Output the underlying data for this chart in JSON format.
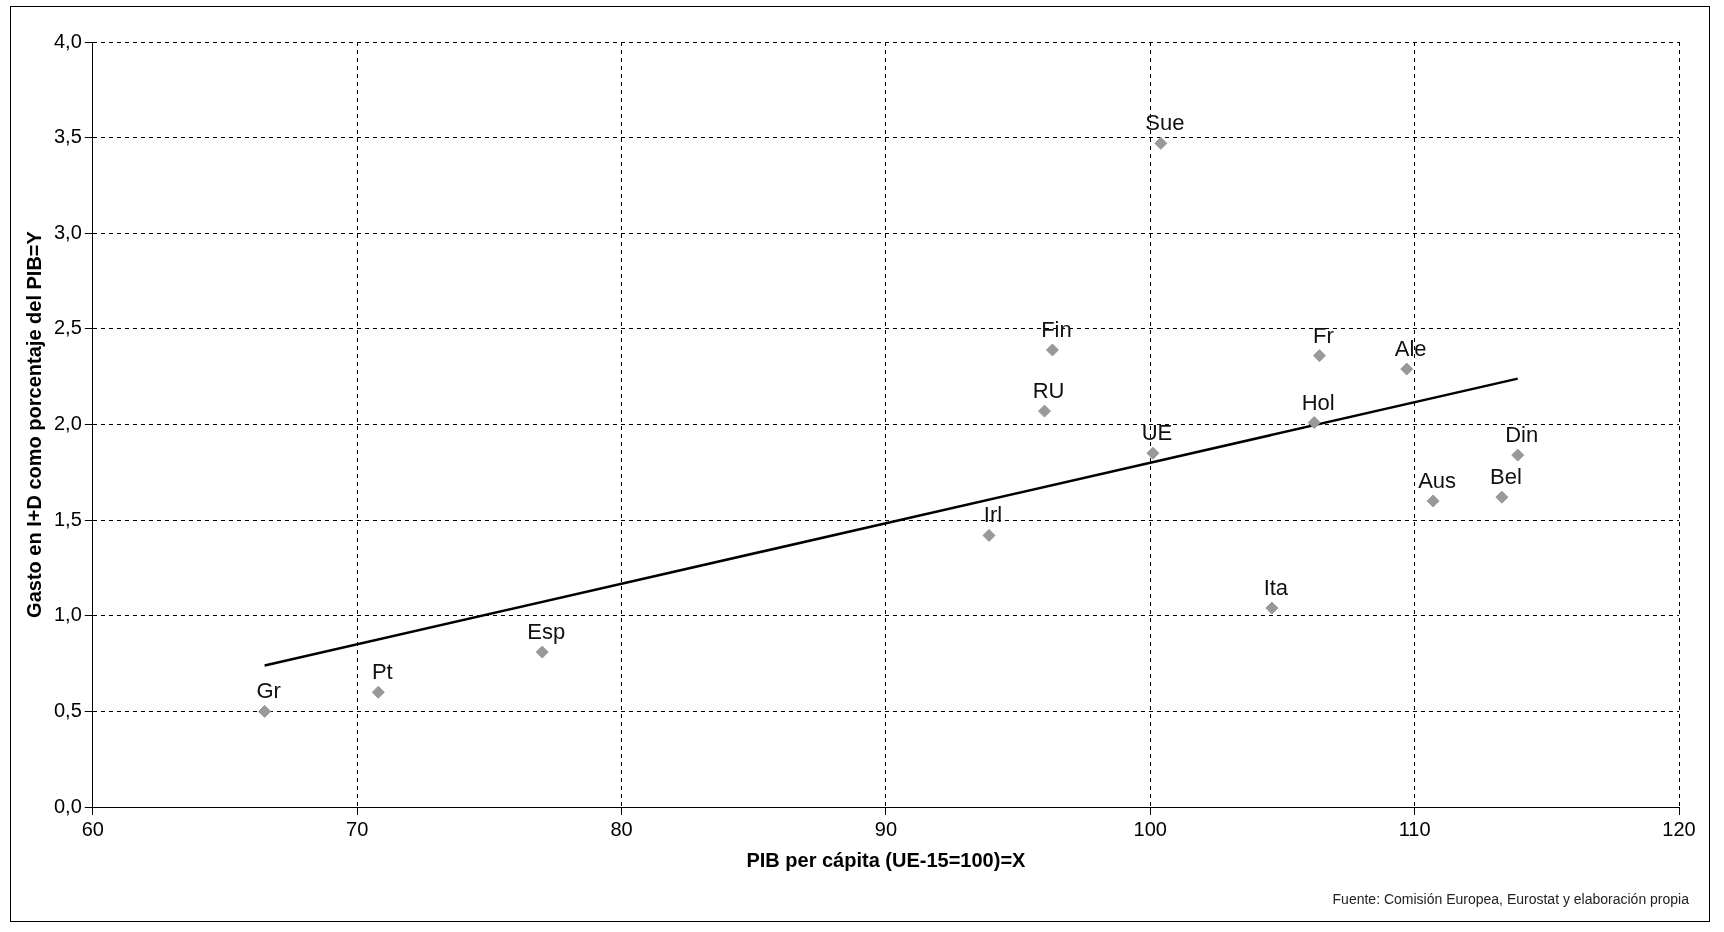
{
  "chart_data": {
    "type": "scatter",
    "xlabel": "PIB per cápita (UE-15=100)=X",
    "ylabel": "Gasto en I+D como porcentaje del PIB=Y",
    "xlim": [
      60,
      120
    ],
    "xticks": [
      60,
      70,
      80,
      90,
      100,
      110,
      120
    ],
    "ylim": [
      0,
      4
    ],
    "yticks": [
      {
        "value": 0,
        "label": "0,0"
      },
      {
        "value": 0.5,
        "label": "0,5"
      },
      {
        "value": 1,
        "label": "1,0"
      },
      {
        "value": 1.5,
        "label": "1,5"
      },
      {
        "value": 2,
        "label": "2,0"
      },
      {
        "value": 2.5,
        "label": "2,5"
      },
      {
        "value": 3,
        "label": "3,0"
      },
      {
        "value": 3.5,
        "label": "3,5"
      },
      {
        "value": 4,
        "label": "4,0"
      }
    ],
    "grid": true,
    "legend": false,
    "marker": "diamond",
    "series": [
      {
        "type": "scatter",
        "color": "#999999",
        "x": [
          66.5,
          70.8,
          77.0,
          93.9,
          96.3,
          96.0,
          100.1,
          100.4,
          104.6,
          106.4,
          106.2,
          109.7,
          110.7,
          113.3,
          113.9
        ],
        "values": [
          0.5,
          0.6,
          0.81,
          1.42,
          2.39,
          2.07,
          1.85,
          3.47,
          1.04,
          2.36,
          2.01,
          2.29,
          1.6,
          1.62,
          1.84
        ],
        "value_labels": [
          "Gr",
          "Pt",
          "Esp",
          "Irl",
          "Fin",
          "RU",
          "UE",
          "Sue",
          "Ita",
          "Fr",
          "Hol",
          "Ale",
          "Aus",
          "Bel",
          "Din"
        ]
      },
      {
        "type": "line",
        "color": "#000000",
        "marker": "none",
        "x": [
          66.5,
          113.9
        ],
        "values": [
          0.74,
          2.24
        ]
      }
    ],
    "annotations": [
      "Fuente: Comisión Europea, Eurostat y elaboración propia"
    ]
  }
}
